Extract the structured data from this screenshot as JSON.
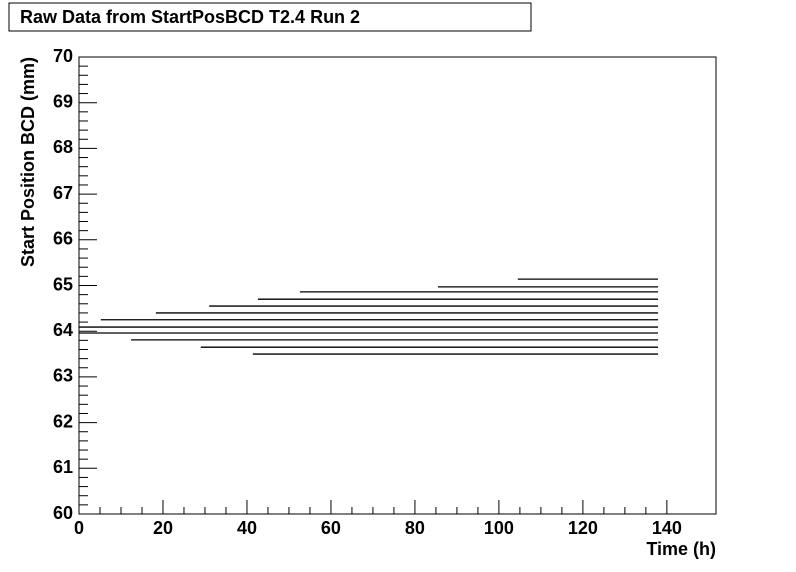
{
  "chart_data": {
    "type": "hsegments",
    "title": "Raw Data from StartPosBCD T2.4 Run 2",
    "x_label": "Time (h)",
    "y_label": "Start Position BCD (mm)",
    "color": "#000000",
    "xlim": [
      0,
      151.7
    ],
    "xticks": [
      0,
      20,
      40,
      60,
      80,
      100,
      120,
      140
    ],
    "ylim": [
      60,
      70
    ],
    "yticks": [
      60,
      61,
      62,
      63,
      64,
      65,
      66,
      67,
      68,
      69,
      70
    ],
    "segments": [
      {
        "y": 65.14,
        "x": [
          104.5,
          137.9
        ]
      },
      {
        "y": 64.97,
        "x": [
          85.5,
          137.9
        ]
      },
      {
        "y": 64.86,
        "x": [
          52.6,
          137.9
        ]
      },
      {
        "y": 64.7,
        "x": [
          42.6,
          137.9
        ]
      },
      {
        "y": 64.55,
        "x": [
          31,
          137.9
        ]
      },
      {
        "y": 64.4,
        "x": [
          18.3,
          137.9
        ]
      },
      {
        "y": 64.25,
        "x": [
          5.2,
          137.9
        ]
      },
      {
        "y": 64.09,
        "x": [
          0,
          137.9
        ]
      },
      {
        "y": 63.96,
        "x": [
          0,
          137.9
        ]
      },
      {
        "y": 63.81,
        "x": [
          12.4,
          137.9
        ]
      },
      {
        "y": 63.65,
        "x": [
          29,
          137.9
        ]
      },
      {
        "y": 63.5,
        "x": [
          41.4,
          137.9
        ]
      }
    ]
  }
}
